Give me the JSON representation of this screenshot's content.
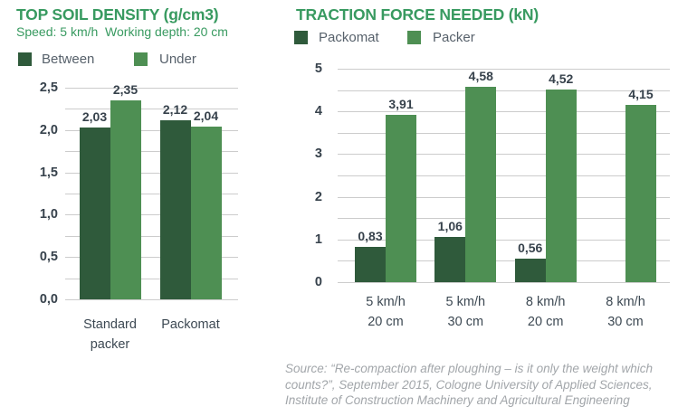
{
  "chart_data": [
    {
      "type": "bar",
      "title": "TOP SOIL DENSITY (g/cm3)",
      "subtitle": "Speed: 5 km/h  Working depth: 20 cm",
      "categories": [
        [
          "Standard",
          "packer"
        ],
        [
          "Packomat"
        ]
      ],
      "series": [
        {
          "name": "Between",
          "color": "#2f5a3b",
          "values": [
            2.03,
            2.12
          ],
          "value_labels": [
            "2,03",
            "2,12"
          ]
        },
        {
          "name": "Under",
          "color": "#4e8f53",
          "values": [
            2.35,
            2.04
          ],
          "value_labels": [
            "2,35",
            "2,04"
          ]
        }
      ],
      "ylim": [
        0,
        2.5
      ],
      "ytick_values": [
        0,
        0.5,
        1,
        1.5,
        2,
        2.5
      ],
      "ytick_labels": [
        "0,0",
        "0,5",
        "1,0",
        "1,5",
        "2,0",
        "2,5"
      ],
      "minor_grid_step": 0.25,
      "grid": true,
      "legend_position": "top"
    },
    {
      "type": "bar",
      "title": "TRACTION FORCE NEEDED (kN)",
      "subtitle": "",
      "categories": [
        [
          "5 km/h",
          "20 cm"
        ],
        [
          "5 km/h",
          "30 cm"
        ],
        [
          "8 km/h",
          "20 cm"
        ],
        [
          "8 km/h",
          "30 cm"
        ]
      ],
      "series": [
        {
          "name": "Packomat",
          "color": "#2f5a3b",
          "values": [
            0.83,
            1.06,
            0.56,
            null
          ],
          "value_labels": [
            "0,83",
            "1,06",
            "0,56",
            ""
          ]
        },
        {
          "name": "Packer",
          "color": "#4e8f53",
          "values": [
            3.91,
            4.58,
            4.52,
            4.15
          ],
          "value_labels": [
            "3,91",
            "4,58",
            "4,52",
            "4,15"
          ]
        }
      ],
      "ylim": [
        0,
        5
      ],
      "ytick_values": [
        0,
        1,
        2,
        3,
        4,
        5
      ],
      "ytick_labels": [
        "0",
        "1",
        "2",
        "3",
        "4",
        "5"
      ],
      "minor_grid_step": 0.5,
      "grid": true,
      "legend_position": "top"
    }
  ],
  "source": {
    "lines": [
      "Source: “Re-compaction after ploughing – is it only the weight which",
      "counts?”, September 2015, Cologne University of Applied Sciences,",
      "Institute of Construction Machinery and Agricultural Engineering"
    ]
  },
  "colors": {
    "dark_green": "#2f5a3b",
    "light_green": "#4e8f53",
    "title_green": "#389a60",
    "axis_text": "#37424c",
    "category_text": "#3d4953",
    "legend_text": "#57616b",
    "gridline": "#cccccc",
    "source_text": "#a2a6aa",
    "background": "#ffffff"
  }
}
